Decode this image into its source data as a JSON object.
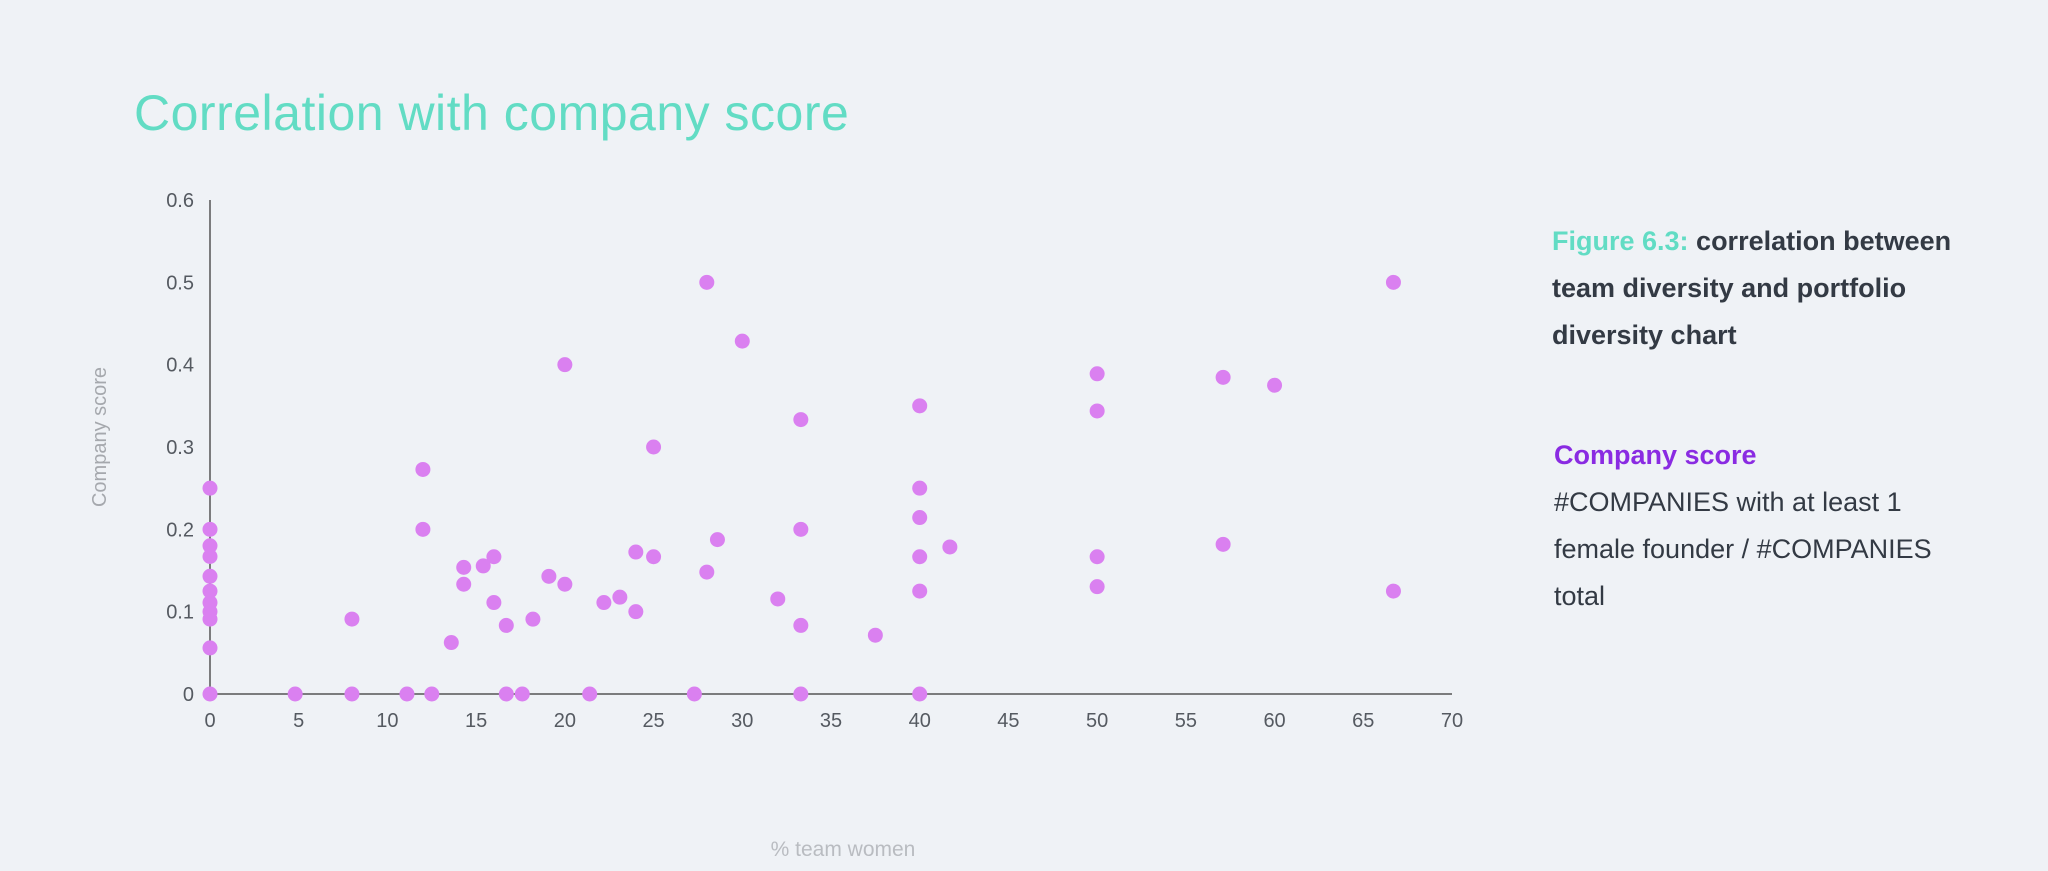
{
  "page": {
    "title": "Correlation with company score"
  },
  "caption": {
    "figure_label": "Figure 6.3:",
    "text": "correlation between team diversity and portfolio diversity chart"
  },
  "description": {
    "series_name": "Company score",
    "definition": "#COMPANIES with at least 1 female founder / #COMPANIES total"
  },
  "chart_data": {
    "type": "scatter",
    "title": "Correlation with company score",
    "xlabel": "% team women",
    "ylabel": "Company score",
    "xlim": [
      0,
      70
    ],
    "ylim": [
      0,
      0.6
    ],
    "x_ticks": [
      "0",
      "5",
      "10",
      "15",
      "20",
      "25",
      "30",
      "35",
      "40",
      "45",
      "50",
      "55",
      "60",
      "65",
      "70"
    ],
    "y_ticks": [
      "0",
      "0.1",
      "0.2",
      "0.3",
      "0.4",
      "0.5",
      "0.6"
    ],
    "grid": false,
    "marker_color": "#da80f0",
    "series": [
      {
        "name": "Company score",
        "points": [
          [
            0,
            0.25
          ],
          [
            0,
            0.2
          ],
          [
            0,
            0.18
          ],
          [
            0,
            0.167
          ],
          [
            0,
            0.143
          ],
          [
            0,
            0.125
          ],
          [
            0,
            0.111
          ],
          [
            0,
            0.1
          ],
          [
            0,
            0.091
          ],
          [
            0,
            0.056
          ],
          [
            0,
            0
          ],
          [
            4.8,
            0
          ],
          [
            8,
            0.091
          ],
          [
            8,
            0
          ],
          [
            11.1,
            0
          ],
          [
            12,
            0.2727
          ],
          [
            12,
            0.2
          ],
          [
            12.5,
            0
          ],
          [
            13.6,
            0.0625
          ],
          [
            14.3,
            0.1538
          ],
          [
            14.3,
            0.1333
          ],
          [
            15.4,
            0.1556
          ],
          [
            16,
            0.1667
          ],
          [
            16,
            0.1111
          ],
          [
            16.7,
            0.0833
          ],
          [
            16.7,
            0
          ],
          [
            17.6,
            0
          ],
          [
            18.2,
            0.0909
          ],
          [
            19.1,
            0.1429
          ],
          [
            20,
            0.4
          ],
          [
            20,
            0.1333
          ],
          [
            21.4,
            0
          ],
          [
            22.2,
            0.1111
          ],
          [
            23.1,
            0.1176
          ],
          [
            24,
            0.1724
          ],
          [
            24,
            0.1
          ],
          [
            25,
            0.3
          ],
          [
            25,
            0.1667
          ],
          [
            27.3,
            0
          ],
          [
            28,
            0.5
          ],
          [
            28,
            0.1481
          ],
          [
            28.6,
            0.1875
          ],
          [
            30,
            0.4286
          ],
          [
            32,
            0.1154
          ],
          [
            33.3,
            0.3333
          ],
          [
            33.3,
            0.2
          ],
          [
            33.3,
            0.0833
          ],
          [
            33.3,
            0
          ],
          [
            37.5,
            0.0714
          ],
          [
            40,
            0.35
          ],
          [
            40,
            0.25
          ],
          [
            40,
            0.2143
          ],
          [
            40,
            0.1667
          ],
          [
            40,
            0.125
          ],
          [
            40,
            0
          ],
          [
            41.7,
            0.1786
          ],
          [
            50,
            0.3889
          ],
          [
            50,
            0.3438
          ],
          [
            50,
            0.1667
          ],
          [
            50,
            0.1304
          ],
          [
            57.1,
            0.3846
          ],
          [
            57.1,
            0.1818
          ],
          [
            60,
            0.375
          ],
          [
            66.7,
            0.5
          ],
          [
            66.7,
            0.125
          ]
        ]
      }
    ]
  }
}
